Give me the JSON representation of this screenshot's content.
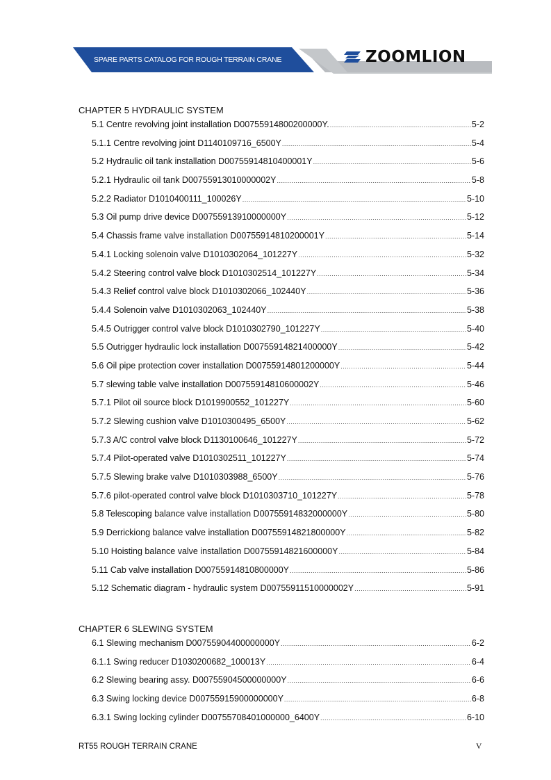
{
  "header": {
    "banner_title": "SPARE PARTS CATALOG FOR ROUGH TERRAIN  CRANE",
    "logo_text": "ZOOMLION",
    "colors": {
      "banner_blue": "#1f4e9c",
      "banner_grey": "#b9bcc0"
    }
  },
  "chapters": [
    {
      "title": "CHAPTER 5 HYDRAULIC SYSTEM",
      "entries": [
        {
          "label": "5.1 Centre revolving joint installation D00755914800200000Y.",
          "page": "5-2"
        },
        {
          "label": "5.1.1 Centre revolving joint  D1140109716_6500Y",
          "page": "5-4"
        },
        {
          "label": "5.2 Hydraulic oil tank installation D00755914810400001Y",
          "page": "5-6"
        },
        {
          "label": "5.2.1 Hydraulic oil tank D00755913010000002Y",
          "page": "5-8"
        },
        {
          "label": "5.2.2 Radiator D1010400111_100026Y",
          "page": "5-10"
        },
        {
          "label": "5.3 Oil pump drive device D00755913910000000Y",
          "page": "5-12"
        },
        {
          "label": "5.4 Chassis frame valve installation D00755914810200001Y",
          "page": "5-14"
        },
        {
          "label": "5.4.1 Locking solenoin valve D1010302064_101227Y",
          "page": "5-32"
        },
        {
          "label": "5.4.2 Steering control valve block D1010302514_101227Y",
          "page": "5-34"
        },
        {
          "label": "5.4.3 Relief control valve block D1010302066_102440Y",
          "page": "5-36"
        },
        {
          "label": "5.4.4 Solenoin valve D1010302063_102440Y",
          "page": "5-38"
        },
        {
          "label": "5.4.5 Outrigger control valve block D1010302790_101227Y",
          "page": "5-40"
        },
        {
          "label": "5.5 Outrigger hydraulic lock installation D00755914821400000Y",
          "page": "5-42"
        },
        {
          "label": "5.6 Oil pipe protection cover installation D00755914801200000Y",
          "page": "5-44"
        },
        {
          "label": "5.7 slewing table valve installation D00755914810600002Y",
          "page": "5-46"
        },
        {
          "label": "5.7.1 Pilot oil source block D1019900552_101227Y",
          "page": "5-60"
        },
        {
          "label": "5.7.2 Slewing cushion valve D1010300495_6500Y",
          "page": "5-62"
        },
        {
          "label": "5.7.3 A/C control valve block D1130100646_101227Y",
          "page": "5-72"
        },
        {
          "label": "5.7.4 Pilot-operated valve D1010302511_101227Y",
          "page": "5-74"
        },
        {
          "label": "5.7.5 Slewing brake valve D1010303988_6500Y",
          "page": "5-76"
        },
        {
          "label": "5.7.6 pilot-operated control valve block D1010303710_101227Y",
          "page": "5-78"
        },
        {
          "label": "5.8 Telescoping balance valve installation D00755914832000000Y",
          "page": "5-80"
        },
        {
          "label": "5.9 Derrickiong balance valve installation D00755914821800000Y",
          "page": "5-82"
        },
        {
          "label": "5.10 Hoisting balance valve installation D00755914821600000Y",
          "page": "5-84"
        },
        {
          "label": "5.11 Cab valve installation D00755914810800000Y",
          "page": "5-86"
        },
        {
          "label": "5.12 Schematic diagram - hydraulic system D00755911510000002Y",
          "page": "5-91"
        }
      ]
    },
    {
      "title": "CHAPTER 6 SLEWING SYSTEM",
      "entries": [
        {
          "label": "6.1 Slewing mechanism D00755904400000000Y",
          "page": "6-2"
        },
        {
          "label": "6.1.1 Swing reducer D1030200682_100013Y",
          "page": "6-4"
        },
        {
          "label": "6.2 Slewing bearing assy. D00755904500000000Y",
          "page": "6-6"
        },
        {
          "label": "6.3 Swing locking device D00755915900000000Y",
          "page": "6-8"
        },
        {
          "label": "6.3.1 Swing locking cylinder D00755708401000000_6400Y",
          "page": "6-10"
        }
      ]
    }
  ],
  "footer": {
    "left": "RT55 ROUGH TERRAIN CRANE",
    "page_number": "V"
  }
}
